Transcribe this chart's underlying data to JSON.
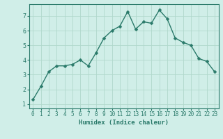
{
  "x": [
    0,
    1,
    2,
    3,
    4,
    5,
    6,
    7,
    8,
    9,
    10,
    11,
    12,
    13,
    14,
    15,
    16,
    17,
    18,
    19,
    20,
    21,
    22,
    23
  ],
  "y": [
    1.3,
    2.2,
    3.2,
    3.6,
    3.6,
    3.7,
    4.0,
    3.6,
    4.5,
    5.5,
    6.0,
    6.3,
    7.3,
    6.1,
    6.6,
    6.5,
    7.4,
    6.8,
    5.5,
    5.2,
    5.0,
    4.1,
    3.9,
    3.2
  ],
  "xlabel": "Humidex (Indice chaleur)",
  "xlim": [
    -0.5,
    23.5
  ],
  "ylim": [
    0.7,
    7.8
  ],
  "yticks": [
    1,
    2,
    3,
    4,
    5,
    6,
    7
  ],
  "xticks": [
    0,
    1,
    2,
    3,
    4,
    5,
    6,
    7,
    8,
    9,
    10,
    11,
    12,
    13,
    14,
    15,
    16,
    17,
    18,
    19,
    20,
    21,
    22,
    23
  ],
  "line_color": "#2a7a6a",
  "bg_color": "#d0eee8",
  "grid_color": "#b0d8cc",
  "marker_size": 2.5,
  "line_width": 1.0,
  "tick_fontsize": 5.5,
  "xlabel_fontsize": 6.5,
  "ylabel_fontsize": 6.5
}
